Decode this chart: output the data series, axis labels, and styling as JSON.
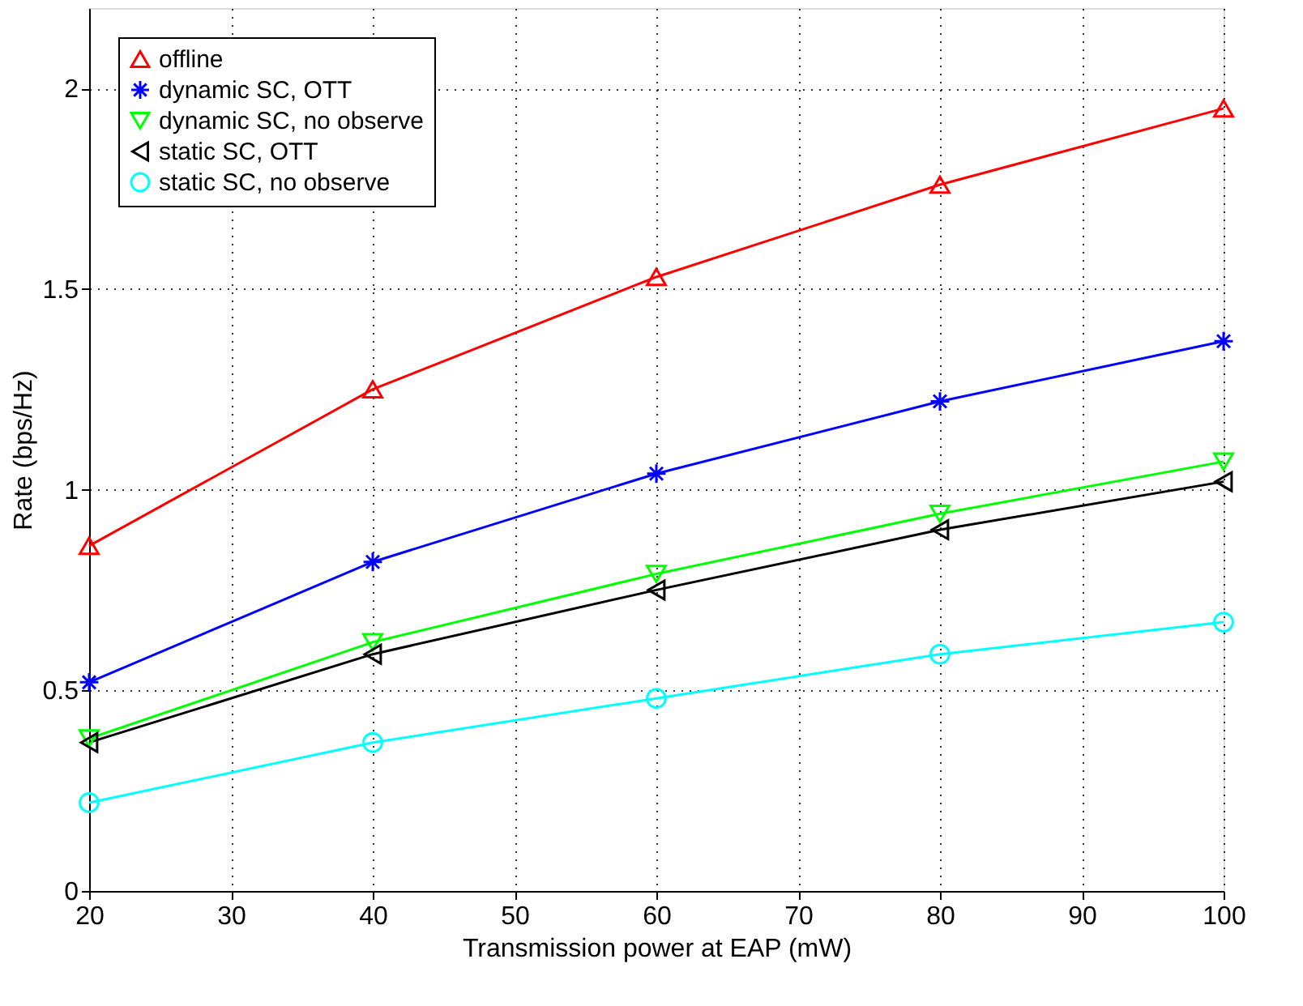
{
  "chart_data": {
    "type": "line",
    "xlabel": "Transmission power at EAP (mW)",
    "ylabel": "Rate (bps/Hz)",
    "x": [
      20,
      40,
      60,
      80,
      100
    ],
    "series": [
      {
        "name": "offline",
        "color": "#ff0000",
        "marker": "triangle-up",
        "values": [
          0.86,
          1.25,
          1.53,
          1.76,
          1.95
        ]
      },
      {
        "name": "dynamic SC, OTT",
        "color": "#0000ff",
        "marker": "cross",
        "values": [
          0.52,
          0.82,
          1.04,
          1.22,
          1.37
        ]
      },
      {
        "name": "dynamic SC, no observe",
        "color": "#00ff00",
        "marker": "triangle-down",
        "values": [
          0.38,
          0.62,
          0.79,
          0.94,
          1.07
        ]
      },
      {
        "name": "static SC, OTT",
        "color": "#000000",
        "marker": "triangle-left",
        "values": [
          0.37,
          0.59,
          0.75,
          0.9,
          1.02
        ]
      },
      {
        "name": "static SC, no observe",
        "color": "#00ffff",
        "marker": "circle",
        "values": [
          0.22,
          0.37,
          0.48,
          0.59,
          0.67
        ]
      }
    ],
    "xlim": [
      20,
      100
    ],
    "xticks": [
      20,
      30,
      40,
      50,
      60,
      70,
      80,
      90,
      100
    ],
    "ylim": [
      0,
      2.2
    ],
    "yticks": [
      0,
      0.5,
      1,
      1.5,
      2
    ],
    "grid": true,
    "legend": "top left",
    "line_style": "solid"
  }
}
